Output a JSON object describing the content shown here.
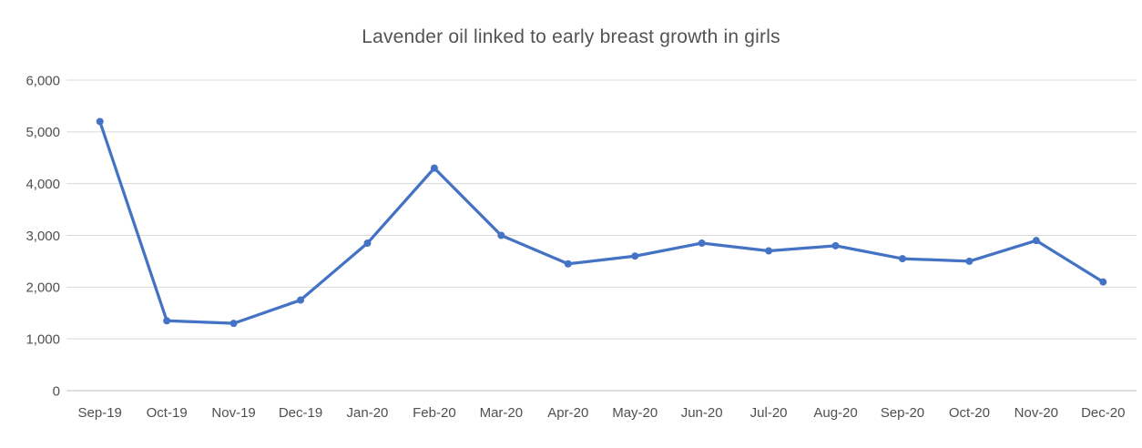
{
  "chart": {
    "title": "Lavender oil linked to early breast growth in girls"
  },
  "chart_data": {
    "type": "line",
    "title": "Lavender oil linked to early breast growth in girls",
    "xlabel": "",
    "ylabel": "",
    "categories": [
      "Sep-19",
      "Oct-19",
      "Nov-19",
      "Dec-19",
      "Jan-20",
      "Feb-20",
      "Mar-20",
      "Apr-20",
      "May-20",
      "Jun-20",
      "Jul-20",
      "Aug-20",
      "Sep-20",
      "Oct-20",
      "Nov-20",
      "Dec-20"
    ],
    "series": [
      {
        "name": "",
        "values": [
          5200,
          1350,
          1300,
          1750,
          2850,
          4300,
          3000,
          2450,
          2600,
          2850,
          2700,
          2800,
          2550,
          2500,
          2900,
          2100
        ]
      }
    ],
    "ylim": [
      0,
      6000
    ],
    "ytick_interval": 1000,
    "ytick_labels": [
      "0",
      "1,000",
      "2,000",
      "3,000",
      "4,000",
      "5,000",
      "6,000"
    ],
    "grid": "horizontal-only",
    "legend": "none",
    "marker": "circle",
    "colors": {
      "line": "#4472C4",
      "marker": "#4472C4",
      "gridline": "#D9D9D9",
      "axis_line": "#BFBFBF",
      "tick_label": "#4f4f4f",
      "title": "#535353",
      "background": "#FFFFFF"
    }
  }
}
